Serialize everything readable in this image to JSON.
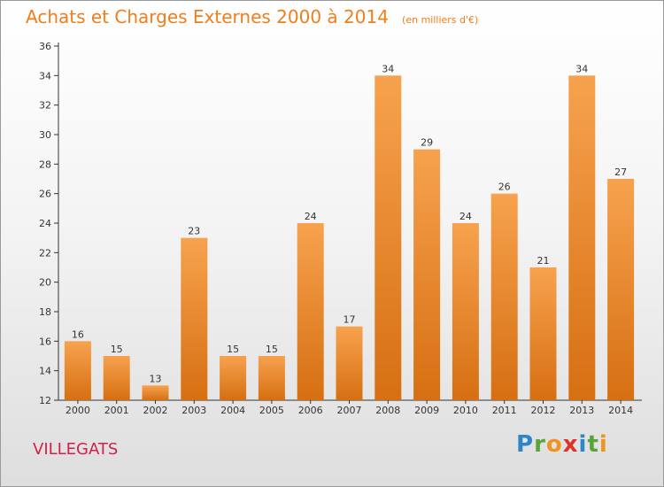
{
  "title": "Achats et Charges Externes 2000 à 2014",
  "unit_note": "(en milliers d'€)",
  "commune": "VILLEGATS",
  "logo": {
    "letters": [
      "P",
      "r",
      "o",
      "x",
      "i",
      "t",
      "i"
    ],
    "colors": [
      "#2e86c9",
      "#5aa43a",
      "#f0931f",
      "#e0322a",
      "#2e86c9",
      "#5aa43a",
      "#f0931f"
    ]
  },
  "colors": {
    "title": "#f07e1a",
    "commune": "#d0214c",
    "bar_light": "#f7a24e",
    "bar_dark": "#d66f12"
  },
  "chart_data": {
    "type": "bar",
    "title": "Achats et Charges Externes 2000 à 2014",
    "subtitle": "(en milliers d'€)",
    "xlabel": "",
    "ylabel": "",
    "categories": [
      "2000",
      "2001",
      "2002",
      "2003",
      "2004",
      "2005",
      "2006",
      "2007",
      "2008",
      "2009",
      "2010",
      "2011",
      "2012",
      "2013",
      "2014"
    ],
    "values": [
      16,
      15,
      13,
      23,
      15,
      15,
      24,
      17,
      34,
      29,
      24,
      26,
      21,
      34,
      27
    ],
    "ylim": [
      12,
      36
    ],
    "yticks": [
      12,
      14,
      16,
      18,
      20,
      22,
      24,
      26,
      28,
      30,
      32,
      34,
      36
    ],
    "grid": false,
    "data_labels": true
  }
}
